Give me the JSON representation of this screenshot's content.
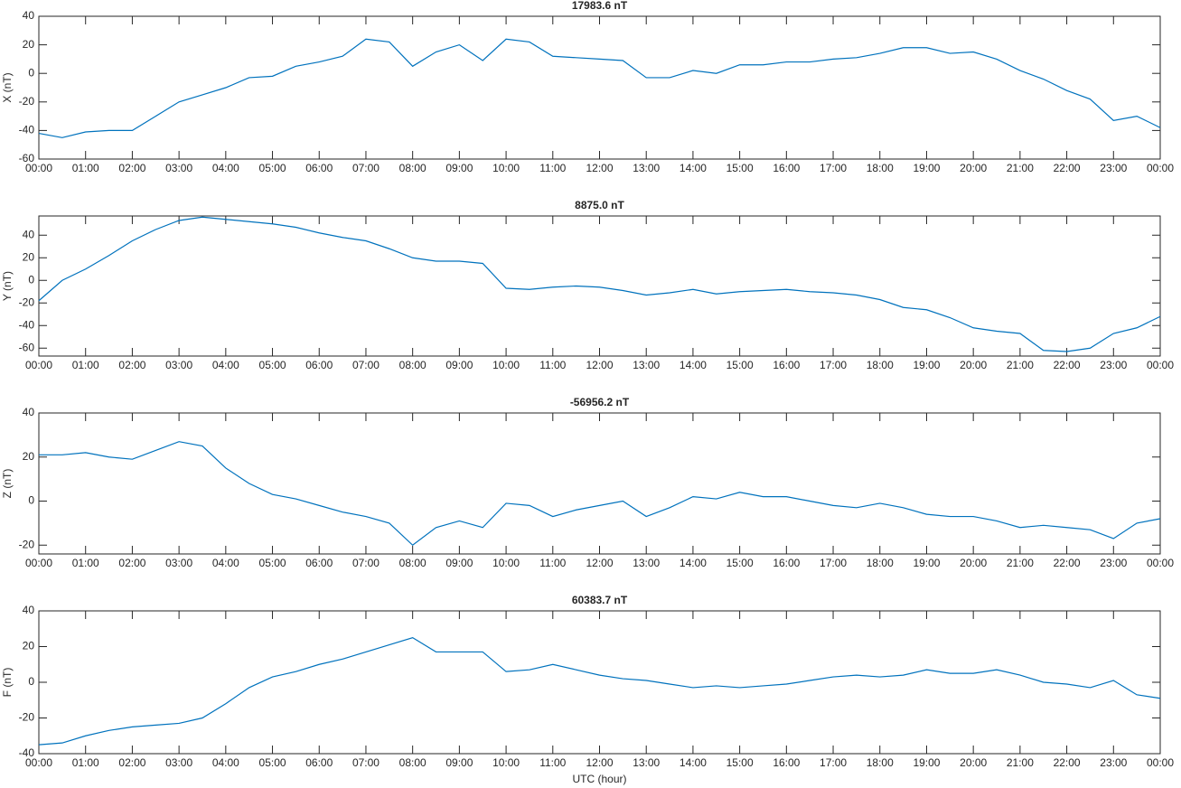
{
  "chart_data": [
    {
      "type": "line",
      "title": "17983.6 nT",
      "y_label": "X (nT)",
      "color": "#0072bd",
      "x": [
        0,
        0.5,
        1,
        1.5,
        2,
        2.5,
        3,
        3.5,
        4,
        4.5,
        5,
        5.5,
        6,
        6.5,
        7,
        7.5,
        8,
        8.5,
        9,
        9.5,
        10,
        10.5,
        11,
        11.5,
        12,
        12.5,
        13,
        13.5,
        14,
        14.5,
        15,
        15.5,
        16,
        16.5,
        17,
        17.5,
        18,
        18.5,
        19,
        19.5,
        20,
        20.5,
        21,
        21.5,
        22,
        22.5,
        23,
        23.5,
        24
      ],
      "values": [
        -42,
        -45,
        -41,
        -40,
        -40,
        -30,
        -20,
        -15,
        -10,
        -3,
        -2,
        5,
        8,
        12,
        24,
        22,
        5,
        15,
        20,
        9,
        24,
        22,
        12,
        11,
        10,
        9,
        -3,
        -3,
        2,
        0,
        6,
        6,
        8,
        8,
        10,
        11,
        14,
        18,
        18,
        14,
        15,
        10,
        2,
        -4,
        -12,
        -18,
        -33,
        -30,
        -38
      ],
      "xlim": [
        0,
        24
      ],
      "xticks": [
        {
          "value": 0,
          "label": "00:00"
        },
        {
          "value": 1,
          "label": "01:00"
        },
        {
          "value": 2,
          "label": "02:00"
        },
        {
          "value": 3,
          "label": "03:00"
        },
        {
          "value": 4,
          "label": "04:00"
        },
        {
          "value": 5,
          "label": "05:00"
        },
        {
          "value": 6,
          "label": "06:00"
        },
        {
          "value": 7,
          "label": "07:00"
        },
        {
          "value": 8,
          "label": "08:00"
        },
        {
          "value": 9,
          "label": "09:00"
        },
        {
          "value": 10,
          "label": "10:00"
        },
        {
          "value": 11,
          "label": "11:00"
        },
        {
          "value": 12,
          "label": "12:00"
        },
        {
          "value": 13,
          "label": "13:00"
        },
        {
          "value": 14,
          "label": "14:00"
        },
        {
          "value": 15,
          "label": "15:00"
        },
        {
          "value": 16,
          "label": "16:00"
        },
        {
          "value": 17,
          "label": "17:00"
        },
        {
          "value": 18,
          "label": "18:00"
        },
        {
          "value": 19,
          "label": "19:00"
        },
        {
          "value": 20,
          "label": "20:00"
        },
        {
          "value": 21,
          "label": "21:00"
        },
        {
          "value": 22,
          "label": "22:00"
        },
        {
          "value": 23,
          "label": "23:00"
        },
        {
          "value": 24,
          "label": "00:00"
        }
      ],
      "ylim": [
        -60,
        40
      ],
      "yticks": [
        -60,
        -40,
        -20,
        0,
        20,
        40
      ]
    },
    {
      "type": "line",
      "title": "8875.0 nT",
      "y_label": "Y (nT)",
      "color": "#0072bd",
      "x": [
        0,
        0.5,
        1,
        1.5,
        2,
        2.5,
        3,
        3.5,
        4,
        4.5,
        5,
        5.5,
        6,
        6.5,
        7,
        7.5,
        8,
        8.5,
        9,
        9.5,
        10,
        10.5,
        11,
        11.5,
        12,
        12.5,
        13,
        13.5,
        14,
        14.5,
        15,
        15.5,
        16,
        16.5,
        17,
        17.5,
        18,
        18.5,
        19,
        19.5,
        20,
        20.5,
        21,
        21.5,
        22,
        22.5,
        23,
        23.5,
        24
      ],
      "values": [
        -18,
        0,
        10,
        22,
        35,
        45,
        53,
        56,
        54,
        52,
        50,
        47,
        42,
        38,
        35,
        28,
        20,
        17,
        17,
        15,
        -7,
        -8,
        -6,
        -5,
        -6,
        -9,
        -13,
        -11,
        -8,
        -12,
        -10,
        -9,
        -8,
        -10,
        -11,
        -13,
        -17,
        -24,
        -26,
        -33,
        -42,
        -45,
        -47,
        -62,
        -63,
        -60,
        -47,
        -42,
        -32
      ],
      "xlim": [
        0,
        24
      ],
      "xticks": [
        {
          "value": 0,
          "label": "00:00"
        },
        {
          "value": 1,
          "label": "01:00"
        },
        {
          "value": 2,
          "label": "02:00"
        },
        {
          "value": 3,
          "label": "03:00"
        },
        {
          "value": 4,
          "label": "04:00"
        },
        {
          "value": 5,
          "label": "05:00"
        },
        {
          "value": 6,
          "label": "06:00"
        },
        {
          "value": 7,
          "label": "07:00"
        },
        {
          "value": 8,
          "label": "08:00"
        },
        {
          "value": 9,
          "label": "09:00"
        },
        {
          "value": 10,
          "label": "10:00"
        },
        {
          "value": 11,
          "label": "11:00"
        },
        {
          "value": 12,
          "label": "12:00"
        },
        {
          "value": 13,
          "label": "13:00"
        },
        {
          "value": 14,
          "label": "14:00"
        },
        {
          "value": 15,
          "label": "15:00"
        },
        {
          "value": 16,
          "label": "16:00"
        },
        {
          "value": 17,
          "label": "17:00"
        },
        {
          "value": 18,
          "label": "18:00"
        },
        {
          "value": 19,
          "label": "19:00"
        },
        {
          "value": 20,
          "label": "20:00"
        },
        {
          "value": 21,
          "label": "21:00"
        },
        {
          "value": 22,
          "label": "22:00"
        },
        {
          "value": 23,
          "label": "23:00"
        },
        {
          "value": 24,
          "label": "00:00"
        }
      ],
      "ylim": [
        -67,
        57
      ],
      "yticks": [
        -60,
        -40,
        -20,
        0,
        20,
        40
      ]
    },
    {
      "type": "line",
      "title": "-56956.2 nT",
      "y_label": "Z (nT)",
      "color": "#0072bd",
      "x": [
        0,
        0.5,
        1,
        1.5,
        2,
        2.5,
        3,
        3.5,
        4,
        4.5,
        5,
        5.5,
        6,
        6.5,
        7,
        7.5,
        8,
        8.5,
        9,
        9.5,
        10,
        10.5,
        11,
        11.5,
        12,
        12.5,
        13,
        13.5,
        14,
        14.5,
        15,
        15.5,
        16,
        16.5,
        17,
        17.5,
        18,
        18.5,
        19,
        19.5,
        20,
        20.5,
        21,
        21.5,
        22,
        22.5,
        23,
        23.5,
        24
      ],
      "values": [
        21,
        21,
        22,
        20,
        19,
        23,
        27,
        25,
        15,
        8,
        3,
        1,
        -2,
        -5,
        -7,
        -10,
        -20,
        -12,
        -9,
        -12,
        -1,
        -2,
        -7,
        -4,
        -2,
        0,
        -7,
        -3,
        2,
        1,
        4,
        2,
        2,
        0,
        -2,
        -3,
        -1,
        -3,
        -6,
        -7,
        -7,
        -9,
        -12,
        -11,
        -12,
        -13,
        -17,
        -10,
        -8
      ],
      "xlim": [
        0,
        24
      ],
      "xticks": [
        {
          "value": 0,
          "label": "00:00"
        },
        {
          "value": 1,
          "label": "01:00"
        },
        {
          "value": 2,
          "label": "02:00"
        },
        {
          "value": 3,
          "label": "03:00"
        },
        {
          "value": 4,
          "label": "04:00"
        },
        {
          "value": 5,
          "label": "05:00"
        },
        {
          "value": 6,
          "label": "06:00"
        },
        {
          "value": 7,
          "label": "07:00"
        },
        {
          "value": 8,
          "label": "08:00"
        },
        {
          "value": 9,
          "label": "09:00"
        },
        {
          "value": 10,
          "label": "10:00"
        },
        {
          "value": 11,
          "label": "11:00"
        },
        {
          "value": 12,
          "label": "12:00"
        },
        {
          "value": 13,
          "label": "13:00"
        },
        {
          "value": 14,
          "label": "14:00"
        },
        {
          "value": 15,
          "label": "15:00"
        },
        {
          "value": 16,
          "label": "16:00"
        },
        {
          "value": 17,
          "label": "17:00"
        },
        {
          "value": 18,
          "label": "18:00"
        },
        {
          "value": 19,
          "label": "19:00"
        },
        {
          "value": 20,
          "label": "20:00"
        },
        {
          "value": 21,
          "label": "21:00"
        },
        {
          "value": 22,
          "label": "22:00"
        },
        {
          "value": 23,
          "label": "23:00"
        },
        {
          "value": 24,
          "label": "00:00"
        }
      ],
      "ylim": [
        -24,
        40
      ],
      "yticks": [
        -20,
        0,
        20,
        40
      ]
    },
    {
      "type": "line",
      "title": "60383.7 nT",
      "y_label": "F (nT)",
      "x_label": "UTC (hour)",
      "color": "#0072bd",
      "x": [
        0,
        0.5,
        1,
        1.5,
        2,
        2.5,
        3,
        3.5,
        4,
        4.5,
        5,
        5.5,
        6,
        6.5,
        7,
        7.5,
        8,
        8.5,
        9,
        9.5,
        10,
        10.5,
        11,
        11.5,
        12,
        12.5,
        13,
        13.5,
        14,
        14.5,
        15,
        15.5,
        16,
        16.5,
        17,
        17.5,
        18,
        18.5,
        19,
        19.5,
        20,
        20.5,
        21,
        21.5,
        22,
        22.5,
        23,
        23.5,
        24
      ],
      "values": [
        -35,
        -34,
        -30,
        -27,
        -25,
        -24,
        -23,
        -20,
        -12,
        -3,
        3,
        6,
        10,
        13,
        17,
        21,
        25,
        17,
        17,
        17,
        6,
        7,
        10,
        7,
        4,
        2,
        1,
        -1,
        -3,
        -2,
        -3,
        -2,
        -1,
        1,
        3,
        4,
        3,
        4,
        7,
        5,
        5,
        7,
        4,
        0,
        -1,
        -3,
        1,
        -7,
        -9
      ],
      "xlim": [
        0,
        24
      ],
      "xticks": [
        {
          "value": 0,
          "label": "00:00"
        },
        {
          "value": 1,
          "label": "01:00"
        },
        {
          "value": 2,
          "label": "02:00"
        },
        {
          "value": 3,
          "label": "03:00"
        },
        {
          "value": 4,
          "label": "04:00"
        },
        {
          "value": 5,
          "label": "05:00"
        },
        {
          "value": 6,
          "label": "06:00"
        },
        {
          "value": 7,
          "label": "07:00"
        },
        {
          "value": 8,
          "label": "08:00"
        },
        {
          "value": 9,
          "label": "09:00"
        },
        {
          "value": 10,
          "label": "10:00"
        },
        {
          "value": 11,
          "label": "11:00"
        },
        {
          "value": 12,
          "label": "12:00"
        },
        {
          "value": 13,
          "label": "13:00"
        },
        {
          "value": 14,
          "label": "14:00"
        },
        {
          "value": 15,
          "label": "15:00"
        },
        {
          "value": 16,
          "label": "16:00"
        },
        {
          "value": 17,
          "label": "17:00"
        },
        {
          "value": 18,
          "label": "18:00"
        },
        {
          "value": 19,
          "label": "19:00"
        },
        {
          "value": 20,
          "label": "20:00"
        },
        {
          "value": 21,
          "label": "21:00"
        },
        {
          "value": 22,
          "label": "22:00"
        },
        {
          "value": 23,
          "label": "23:00"
        },
        {
          "value": 24,
          "label": "00:00"
        }
      ],
      "ylim": [
        -40,
        40
      ],
      "yticks": [
        -40,
        -20,
        0,
        20,
        40
      ]
    }
  ]
}
